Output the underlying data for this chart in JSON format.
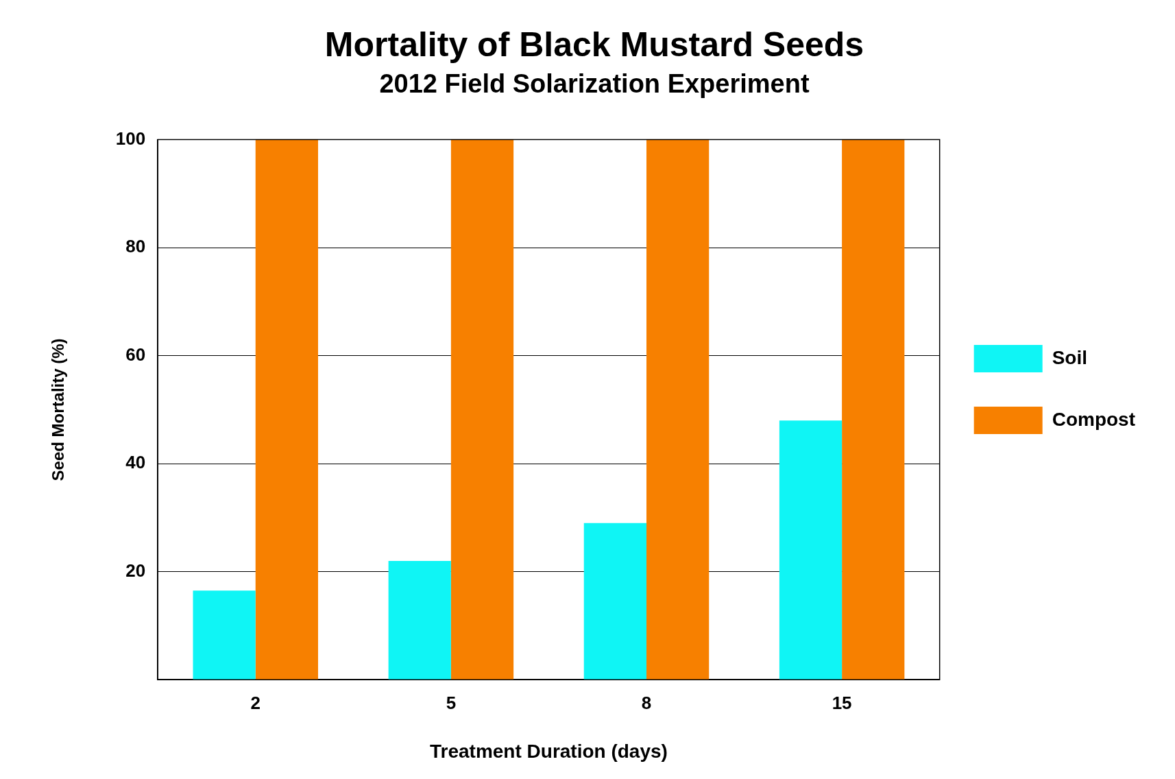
{
  "chart_data": {
    "type": "bar",
    "title": "Mortality of Black Mustard Seeds",
    "subtitle": "2012 Field Solarization Experiment",
    "xlabel": "Treatment Duration (days)",
    "ylabel": "Seed Mortality (%)",
    "categories": [
      "2",
      "5",
      "8",
      "15"
    ],
    "series": [
      {
        "name": "Soil",
        "color": "#0ff5f5",
        "values": [
          16.5,
          22,
          29,
          48
        ]
      },
      {
        "name": "Compost",
        "color": "#f78000",
        "values": [
          100,
          100,
          100,
          100
        ]
      }
    ],
    "ylim": [
      0,
      100
    ],
    "yticks": [
      20,
      40,
      60,
      80,
      100
    ],
    "grid": "y",
    "legend": "right"
  }
}
